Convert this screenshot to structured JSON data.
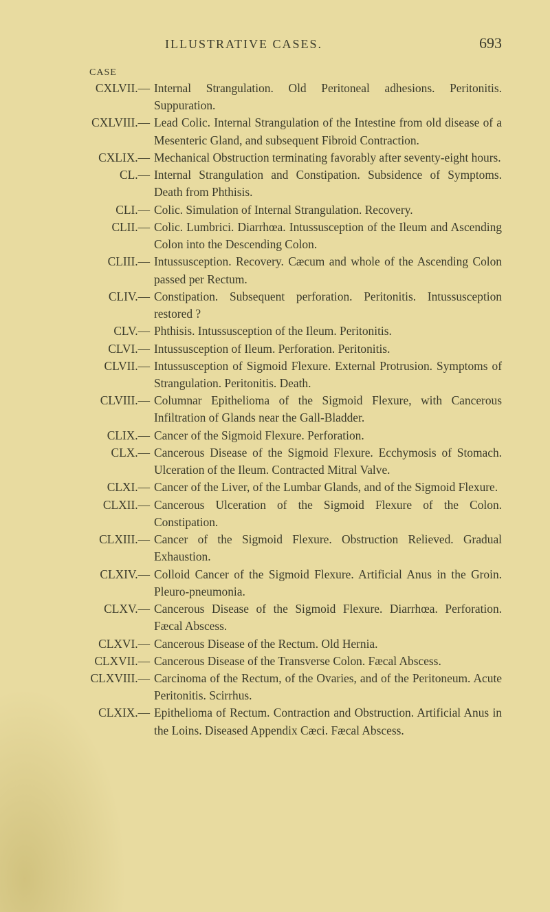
{
  "header": {
    "running_title": "ILLUSTRATIVE CASES.",
    "page_number": "693",
    "case_label": "CASE"
  },
  "entries": [
    {
      "num": "CXLVII.—",
      "text": "Internal Strangulation. Old Peritoneal adhesions. Peritonitis. Suppuration."
    },
    {
      "num": "CXLVIII.—",
      "text": "Lead Colic. Internal Strangulation of the Intestine from old disease of a Mesenteric Gland, and subsequent Fibroid Contraction."
    },
    {
      "num": "CXLIX.—",
      "text": "Mechanical Obstruction terminating favorably after seventy-eight hours."
    },
    {
      "num": "CL.—",
      "text": "Internal Strangulation and Constipation. Subsidence of Symptoms. Death from Phthisis."
    },
    {
      "num": "CLI.—",
      "text": "Colic. Simulation of Internal Strangulation. Recovery."
    },
    {
      "num": "CLII.—",
      "text": "Colic. Lumbrici. Diarrhœa. Intussusception of the Ileum and Ascending Colon into the Descending Colon."
    },
    {
      "num": "CLIII.—",
      "text": "Intussusception. Recovery. Cæcum and whole of the Ascending Colon passed per Rectum."
    },
    {
      "num": "CLIV.—",
      "text": "Constipation. Subsequent perforation. Peritonitis. Intussusception restored ?"
    },
    {
      "num": "CLV.—",
      "text": "Phthisis. Intussusception of the Ileum. Peritonitis."
    },
    {
      "num": "CLVI.—",
      "text": "Intussusception of Ileum. Perforation. Peritonitis."
    },
    {
      "num": "CLVII.—",
      "text": "Intussusception of Sigmoid Flexure. External Protrusion. Symptoms of Strangulation. Peritonitis. Death."
    },
    {
      "num": "CLVIII.—",
      "text": "Columnar Epithelioma of the Sigmoid Flexure, with Cancerous Infiltration of Glands near the Gall-Bladder."
    },
    {
      "num": "CLIX.—",
      "text": "Cancer of the Sigmoid Flexure. Perforation."
    },
    {
      "num": "CLX.—",
      "text": "Cancerous Disease of the Sigmoid Flexure. Ecchymosis of Stomach. Ulceration of the Ileum. Contracted Mitral Valve."
    },
    {
      "num": "CLXI.—",
      "text": "Cancer of the Liver, of the Lumbar Glands, and of the Sigmoid Flexure."
    },
    {
      "num": "CLXII.—",
      "text": "Cancerous Ulceration of the Sigmoid Flexure of the Colon. Constipation."
    },
    {
      "num": "CLXIII.—",
      "text": "Cancer of the Sigmoid Flexure. Obstruction Relieved. Gradual Exhaustion."
    },
    {
      "num": "CLXIV.—",
      "text": "Colloid Cancer of the Sigmoid Flexure. Artificial Anus in the Groin. Pleuro-pneumonia."
    },
    {
      "num": "CLXV.—",
      "text": "Cancerous Disease of the Sigmoid Flexure. Diarrhœa. Perforation. Fæcal Abscess."
    },
    {
      "num": "CLXVI.—",
      "text": "Cancerous Disease of the Rectum. Old Hernia."
    },
    {
      "num": "CLXVII.—",
      "text": "Cancerous Disease of the Transverse Colon. Fæcal Abscess."
    },
    {
      "num": "CLXVIII.—",
      "text": "Carcinoma of the Rectum, of the Ovaries, and of the Peritoneum. Acute Peritonitis. Scirrhus."
    },
    {
      "num": "CLXIX.—",
      "text": "Epithelioma of Rectum. Contraction and Obstruction. Artificial Anus in the Loins. Diseased Appendix Cæci. Fæcal Abscess."
    }
  ]
}
